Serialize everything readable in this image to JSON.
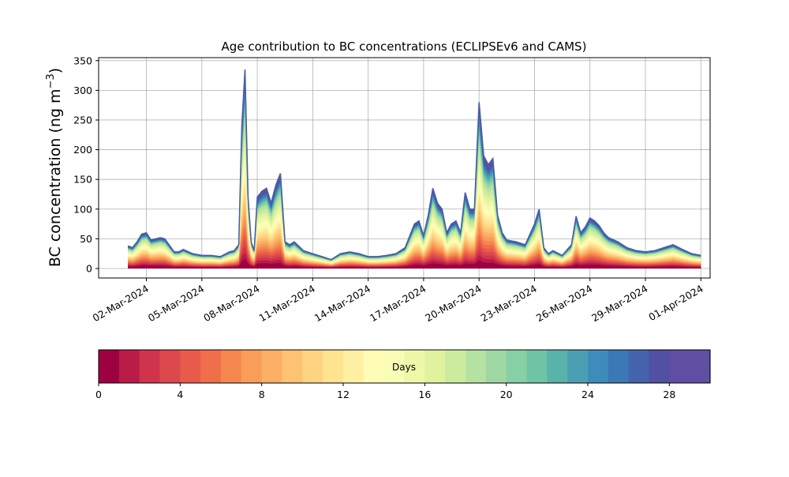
{
  "chart_data": {
    "type": "area",
    "title": "Age contribution to BC concentrations (ECLIPSEv6 and CAMS)",
    "ylabel": "BC concentration (ng m",
    "ylabel_sup": "−3",
    "ylabel_close": ")",
    "xlabel": "",
    "ylim": [
      -16,
      355
    ],
    "yticks": [
      0,
      50,
      100,
      150,
      200,
      250,
      300,
      350
    ],
    "x_range_days": [
      "2024-02-28T10:00",
      "2024-04-01T12:00"
    ],
    "xtick_labels": [
      "02-Mar-2024",
      "05-Mar-2024",
      "08-Mar-2024",
      "11-Mar-2024",
      "14-Mar-2024",
      "17-Mar-2024",
      "20-Mar-2024",
      "23-Mar-2024",
      "26-Mar-2024",
      "29-Mar-2024",
      "01-Apr-2024"
    ],
    "xtick_dates": [
      "2024-03-02",
      "2024-03-05",
      "2024-03-08",
      "2024-03-11",
      "2024-03-14",
      "2024-03-17",
      "2024-03-20",
      "2024-03-23",
      "2024-03-26",
      "2024-03-29",
      "2024-04-01"
    ],
    "grid": true,
    "stack_description": "Cumulative concentration by air-mass age, 0 to 30 days (stacked bands)",
    "total_series": {
      "x": [
        "2024-03-01T00:00",
        "2024-03-01T06:00",
        "2024-03-01T12:00",
        "2024-03-01T18:00",
        "2024-03-02T00:00",
        "2024-03-02T06:00",
        "2024-03-02T12:00",
        "2024-03-02T18:00",
        "2024-03-03T00:00",
        "2024-03-03T12:00",
        "2024-03-03T18:00",
        "2024-03-04T00:00",
        "2024-03-04T12:00",
        "2024-03-05T00:00",
        "2024-03-05T12:00",
        "2024-03-06T00:00",
        "2024-03-06T12:00",
        "2024-03-06T18:00",
        "2024-03-07T00:00",
        "2024-03-07T04:00",
        "2024-03-07T08:00",
        "2024-03-07T12:00",
        "2024-03-07T16:00",
        "2024-03-07T20:00",
        "2024-03-08T00:00",
        "2024-03-08T06:00",
        "2024-03-08T12:00",
        "2024-03-08T18:00",
        "2024-03-09T00:00",
        "2024-03-09T06:00",
        "2024-03-09T12:00",
        "2024-03-09T18:00",
        "2024-03-10T00:00",
        "2024-03-10T12:00",
        "2024-03-11T00:00",
        "2024-03-11T12:00",
        "2024-03-12T00:00",
        "2024-03-12T12:00",
        "2024-03-13T00:00",
        "2024-03-13T12:00",
        "2024-03-14T00:00",
        "2024-03-14T12:00",
        "2024-03-15T00:00",
        "2024-03-15T12:00",
        "2024-03-16T00:00",
        "2024-03-16T12:00",
        "2024-03-16T18:00",
        "2024-03-17T00:00",
        "2024-03-17T06:00",
        "2024-03-17T12:00",
        "2024-03-17T18:00",
        "2024-03-18T00:00",
        "2024-03-18T06:00",
        "2024-03-18T12:00",
        "2024-03-18T18:00",
        "2024-03-19T00:00",
        "2024-03-19T06:00",
        "2024-03-19T12:00",
        "2024-03-19T18:00",
        "2024-03-20T00:00",
        "2024-03-20T06:00",
        "2024-03-20T12:00",
        "2024-03-20T18:00",
        "2024-03-21T00:00",
        "2024-03-21T06:00",
        "2024-03-21T12:00",
        "2024-03-22T00:00",
        "2024-03-22T12:00",
        "2024-03-23T00:00",
        "2024-03-23T06:00",
        "2024-03-23T12:00",
        "2024-03-23T18:00",
        "2024-03-24T00:00",
        "2024-03-24T12:00",
        "2024-03-25T00:00",
        "2024-03-25T06:00",
        "2024-03-25T12:00",
        "2024-03-25T18:00",
        "2024-03-26T00:00",
        "2024-03-26T06:00",
        "2024-03-26T12:00",
        "2024-03-26T18:00",
        "2024-03-27T00:00",
        "2024-03-27T12:00",
        "2024-03-28T00:00",
        "2024-03-28T12:00",
        "2024-03-29T00:00",
        "2024-03-29T12:00",
        "2024-03-30T00:00",
        "2024-03-30T12:00",
        "2024-03-31T00:00",
        "2024-03-31T12:00",
        "2024-04-01T00:00"
      ],
      "y": [
        38,
        35,
        45,
        58,
        60,
        48,
        50,
        52,
        50,
        28,
        28,
        32,
        25,
        22,
        22,
        20,
        28,
        30,
        40,
        240,
        335,
        120,
        45,
        30,
        120,
        130,
        135,
        110,
        140,
        160,
        45,
        40,
        45,
        30,
        25,
        20,
        15,
        25,
        28,
        25,
        20,
        20,
        22,
        25,
        35,
        75,
        80,
        55,
        90,
        135,
        110,
        100,
        60,
        75,
        80,
        60,
        128,
        100,
        100,
        280,
        190,
        175,
        185,
        90,
        60,
        48,
        45,
        40,
        75,
        100,
        35,
        25,
        30,
        22,
        40,
        88,
        60,
        70,
        85,
        80,
        72,
        60,
        52,
        45,
        35,
        30,
        28,
        30,
        35,
        40,
        32,
        25,
        22
      ]
    },
    "colorbar": {
      "label": "Days",
      "vmin": 0,
      "vmax": 30,
      "ticks": [
        0,
        4,
        8,
        12,
        16,
        20,
        24,
        28
      ],
      "colors": [
        "#9e0142",
        "#b91c47",
        "#d0344d",
        "#dc494c",
        "#e85b4b",
        "#f06f4b",
        "#f5874f",
        "#f99d59",
        "#fcb065",
        "#fdc373",
        "#fed481",
        "#fee391",
        "#fff0a4",
        "#fffcb6",
        "#f8fcb4",
        "#eef8a8",
        "#e0f29e",
        "#cceb9f",
        "#b6e2a1",
        "#9fd7a3",
        "#87cfa4",
        "#6fc4a6",
        "#5ab3ab",
        "#4aa0b2",
        "#3e8cbb",
        "#3c78b5",
        "#4563ac",
        "#5250a2",
        "#5e4fa2",
        "#5e4fa2"
      ]
    }
  }
}
